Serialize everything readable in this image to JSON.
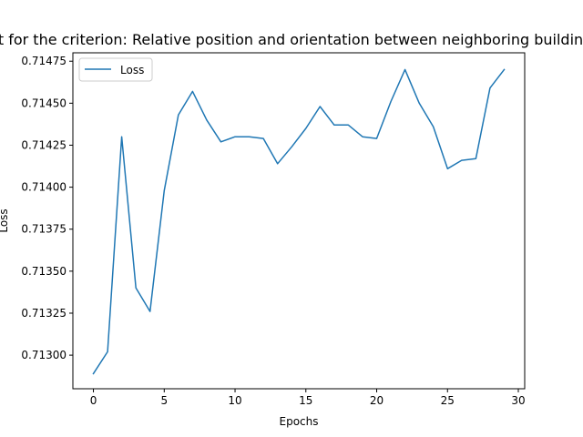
{
  "chart_data": {
    "type": "line",
    "title": "Loss Plot for the criterion: Relative position and orientation between neighboring building blocks",
    "xlabel": "Epochs",
    "ylabel": "Loss",
    "xlim": [
      -1.45,
      30.45
    ],
    "ylim": [
      0.7128,
      0.7148
    ],
    "xticks": [
      0,
      5,
      10,
      15,
      20,
      25,
      30
    ],
    "xtick_labels": [
      "0",
      "5",
      "10",
      "15",
      "20",
      "25",
      "30"
    ],
    "yticks": [
      0.713,
      0.71325,
      0.7135,
      0.71375,
      0.714,
      0.71425,
      0.7145,
      0.71475
    ],
    "ytick_labels": [
      "0.71300",
      "0.71325",
      "0.71350",
      "0.71375",
      "0.71400",
      "0.71425",
      "0.71450",
      "0.71475"
    ],
    "grid": false,
    "legend_position": "top-left",
    "series": [
      {
        "name": "Loss",
        "color": "#1f77b4",
        "x": [
          0,
          1,
          2,
          3,
          4,
          5,
          6,
          7,
          8,
          9,
          10,
          11,
          12,
          13,
          14,
          15,
          16,
          17,
          18,
          19,
          20,
          21,
          22,
          23,
          24,
          25,
          26,
          27,
          28,
          29
        ],
        "y": [
          0.71289,
          0.71302,
          0.7143,
          0.7134,
          0.71326,
          0.71398,
          0.71443,
          0.71457,
          0.7144,
          0.71427,
          0.7143,
          0.7143,
          0.71429,
          0.71414,
          0.71424,
          0.71435,
          0.71448,
          0.71437,
          0.71437,
          0.7143,
          0.71429,
          0.71451,
          0.7147,
          0.7145,
          0.71436,
          0.71411,
          0.71416,
          0.71417,
          0.71459,
          0.7147
        ]
      }
    ]
  }
}
